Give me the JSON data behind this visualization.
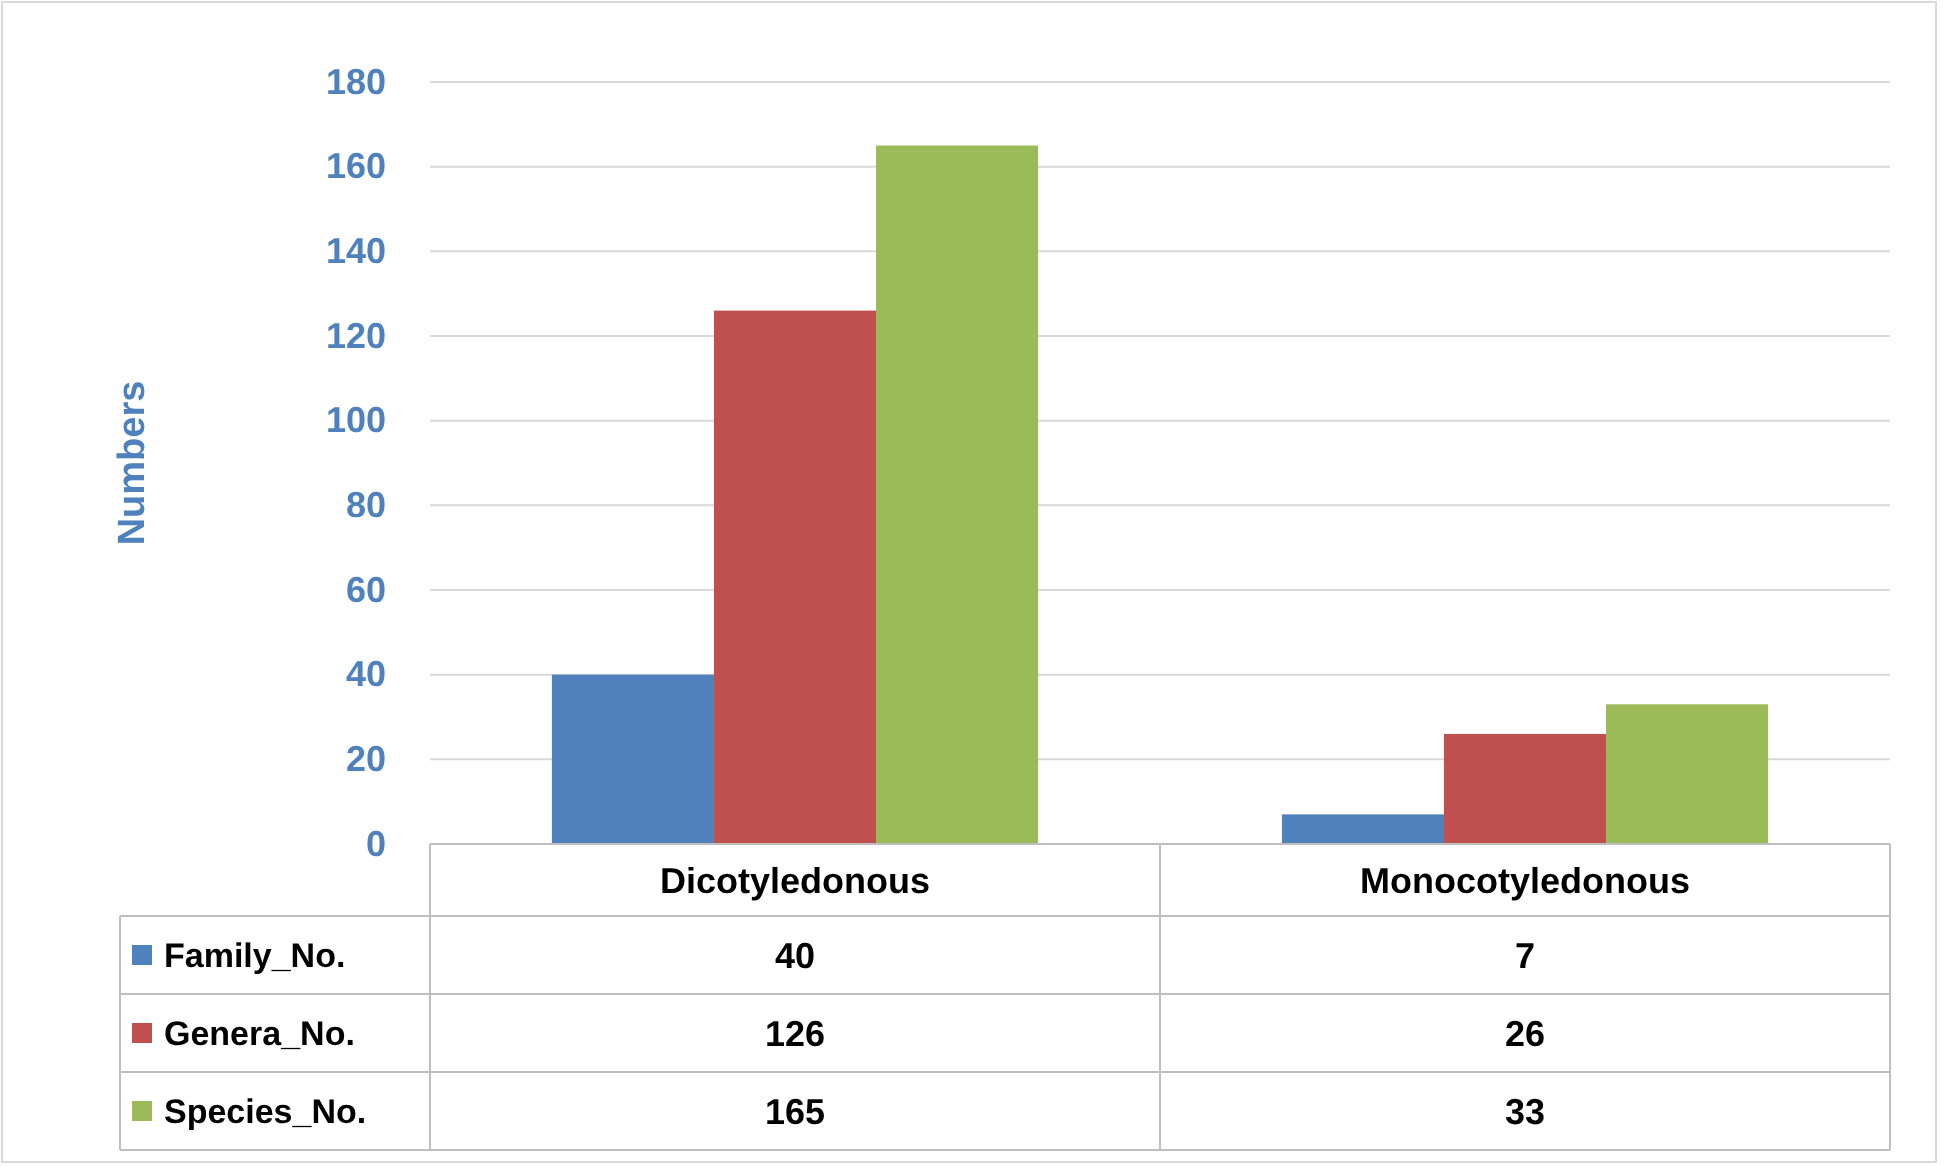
{
  "chart_data": {
    "type": "bar",
    "ylabel": "Numbers",
    "categories": [
      "Dicotyledonous",
      "Monocotyledonous"
    ],
    "series": [
      {
        "name": "Family_No.",
        "color": "#4f81bd",
        "values": [
          40,
          7
        ]
      },
      {
        "name": "Genera_No.",
        "color": "#c0504d",
        "values": [
          126,
          26
        ]
      },
      {
        "name": "Species_No.",
        "color": "#9bbb59",
        "values": [
          165,
          33
        ]
      }
    ],
    "ylim": [
      0,
      180
    ],
    "yticks": [
      0,
      20,
      40,
      60,
      80,
      100,
      120,
      140,
      160,
      180
    ],
    "grid": "y",
    "legend": "bottom",
    "data_labels": true
  }
}
